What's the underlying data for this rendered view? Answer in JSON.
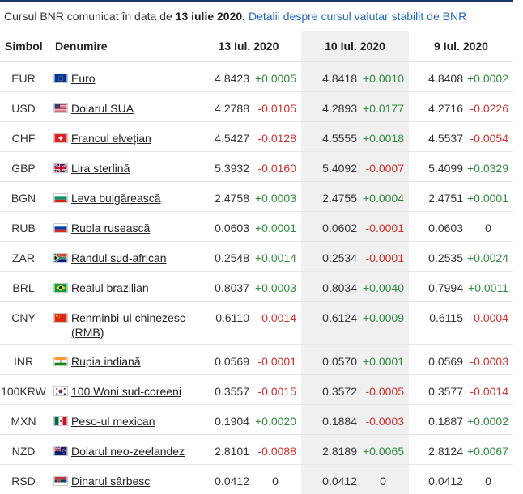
{
  "caption": {
    "prefix": "Cursul BNR comunicat în data de ",
    "date": "13 iulie 2020.",
    "link": "Detalii despre cursul valutar stabilit de BNR"
  },
  "headers": {
    "symbol": "Simbol",
    "name": "Denumire",
    "d1": "13 Iul. 2020",
    "d2": "10 Iul. 2020",
    "d3": "9 Iul. 2020"
  },
  "rows": [
    {
      "sym": "EUR",
      "flag": "eu-flag",
      "name": "Euro",
      "v1": "4.8423",
      "c1": "+0.0005",
      "v2": "4.8418",
      "c2": "+0.0010",
      "v3": "4.8408",
      "c3": "+0.0002"
    },
    {
      "sym": "USD",
      "flag": "us-flag",
      "name": "Dolarul SUA",
      "v1": "4.2788",
      "c1": "-0.0105",
      "v2": "4.2893",
      "c2": "+0.0177",
      "v3": "4.2716",
      "c3": "-0.0226"
    },
    {
      "sym": "CHF",
      "flag": "ch-flag",
      "name": "Francul elvețian",
      "v1": "4.5427",
      "c1": "-0.0128",
      "v2": "4.5555",
      "c2": "+0.0018",
      "v3": "4.5537",
      "c3": "-0.0054"
    },
    {
      "sym": "GBP",
      "flag": "gb-flag",
      "name": "Lira sterlină",
      "v1": "5.3932",
      "c1": "-0.0160",
      "v2": "5.4092",
      "c2": "-0.0007",
      "v3": "5.4099",
      "c3": "+0.0329"
    },
    {
      "sym": "BGN",
      "flag": "bg-flag",
      "name": "Leva bulgărească",
      "v1": "2.4758",
      "c1": "+0.0003",
      "v2": "2.4755",
      "c2": "+0.0004",
      "v3": "2.4751",
      "c3": "+0.0001"
    },
    {
      "sym": "RUB",
      "flag": "ru-flag",
      "name": "Rubla rusească",
      "v1": "0.0603",
      "c1": "+0.0001",
      "v2": "0.0602",
      "c2": "-0.0001",
      "v3": "0.0603",
      "c3": "0"
    },
    {
      "sym": "ZAR",
      "flag": "za-flag",
      "name": "Randul sud-african",
      "v1": "0.2548",
      "c1": "+0.0014",
      "v2": "0.2534",
      "c2": "-0.0001",
      "v3": "0.2535",
      "c3": "+0.0024"
    },
    {
      "sym": "BRL",
      "flag": "br-flag",
      "name": "Realul brazilian",
      "v1": "0.8037",
      "c1": "+0.0003",
      "v2": "0.8034",
      "c2": "+0.0040",
      "v3": "0.7994",
      "c3": "+0.0011"
    },
    {
      "sym": "CNY",
      "flag": "cn-flag",
      "name": "Renminbi-ul chinezesc (RMB)",
      "v1": "0.6110",
      "c1": "-0.0014",
      "v2": "0.6124",
      "c2": "+0.0009",
      "v3": "0.6115",
      "c3": "-0.0004"
    },
    {
      "sym": "INR",
      "flag": "in-flag",
      "name": "Rupia indiană",
      "v1": "0.0569",
      "c1": "-0.0001",
      "v2": "0.0570",
      "c2": "+0.0001",
      "v3": "0.0569",
      "c3": "-0.0003"
    },
    {
      "sym": "100KRW",
      "flag": "kr-flag",
      "name": "100 Woni sud-coreeni",
      "v1": "0.3557",
      "c1": "-0.0015",
      "v2": "0.3572",
      "c2": "-0.0005",
      "v3": "0.3577",
      "c3": "-0.0014"
    },
    {
      "sym": "MXN",
      "flag": "mx-flag",
      "name": "Peso-ul mexican",
      "v1": "0.1904",
      "c1": "+0.0020",
      "v2": "0.1884",
      "c2": "-0.0003",
      "v3": "0.1887",
      "c3": "+0.0002"
    },
    {
      "sym": "NZD",
      "flag": "nz-flag",
      "name": "Dolarul neo-zeelandez",
      "v1": "2.8101",
      "c1": "-0.0088",
      "v2": "2.8189",
      "c2": "+0.0065",
      "v3": "2.8124",
      "c3": "+0.0067"
    },
    {
      "sym": "RSD",
      "flag": "rs-flag",
      "name": "Dinarul sârbesc",
      "v1": "0.0412",
      "c1": "0",
      "v2": "0.0412",
      "c2": "0",
      "v3": "0.0412",
      "c3": "0"
    }
  ],
  "colors": {
    "positive": "#2e8b3e",
    "negative": "#d0312d",
    "alt_column": "#f0f0f0",
    "link": "#1f66c1",
    "top_bar": "#1a3a6b"
  }
}
